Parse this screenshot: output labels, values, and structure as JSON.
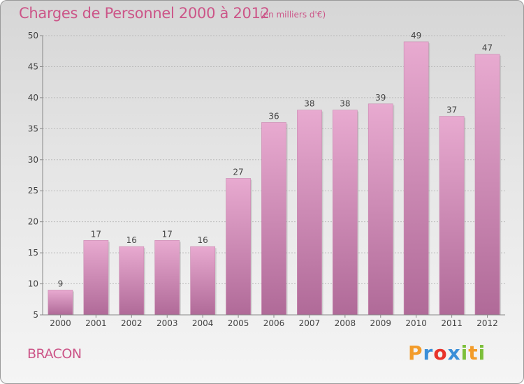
{
  "header": {
    "title": "Charges de Personnel 2000 à 2012",
    "subtitle": "(en milliers d'€)"
  },
  "footer": {
    "place": "BRACON",
    "logo": {
      "text": "Proxiti",
      "letters": [
        {
          "char": "P",
          "color": "#f39c2a"
        },
        {
          "char": "r",
          "color": "#3b8fd8"
        },
        {
          "char": "o",
          "color": "#e8332a"
        },
        {
          "char": "x",
          "color": "#3b8fd8"
        },
        {
          "char": "i",
          "color": "#7cbf3a"
        },
        {
          "char": "t",
          "color": "#f39c2a"
        },
        {
          "char": "i",
          "color": "#7cbf3a"
        }
      ]
    }
  },
  "colors": {
    "bar_top": "#e8aad0",
    "bar_bottom": "#b06a98",
    "text_accent": "#cc5588",
    "grid": "#bbbbbb",
    "axis": "#888888"
  },
  "chart_data": {
    "type": "bar",
    "title": "Charges de Personnel 2000 à 2012",
    "subtitle": "(en milliers d'€)",
    "categories": [
      "2000",
      "2001",
      "2002",
      "2003",
      "2004",
      "2005",
      "2006",
      "2007",
      "2008",
      "2009",
      "2010",
      "2011",
      "2012"
    ],
    "values": [
      9,
      17,
      16,
      17,
      16,
      27,
      36,
      38,
      38,
      39,
      49,
      37,
      47
    ],
    "ylim": [
      5,
      50
    ],
    "yticks": [
      5,
      10,
      15,
      20,
      25,
      30,
      35,
      40,
      45,
      50
    ],
    "grid": true,
    "data_labels": true
  }
}
